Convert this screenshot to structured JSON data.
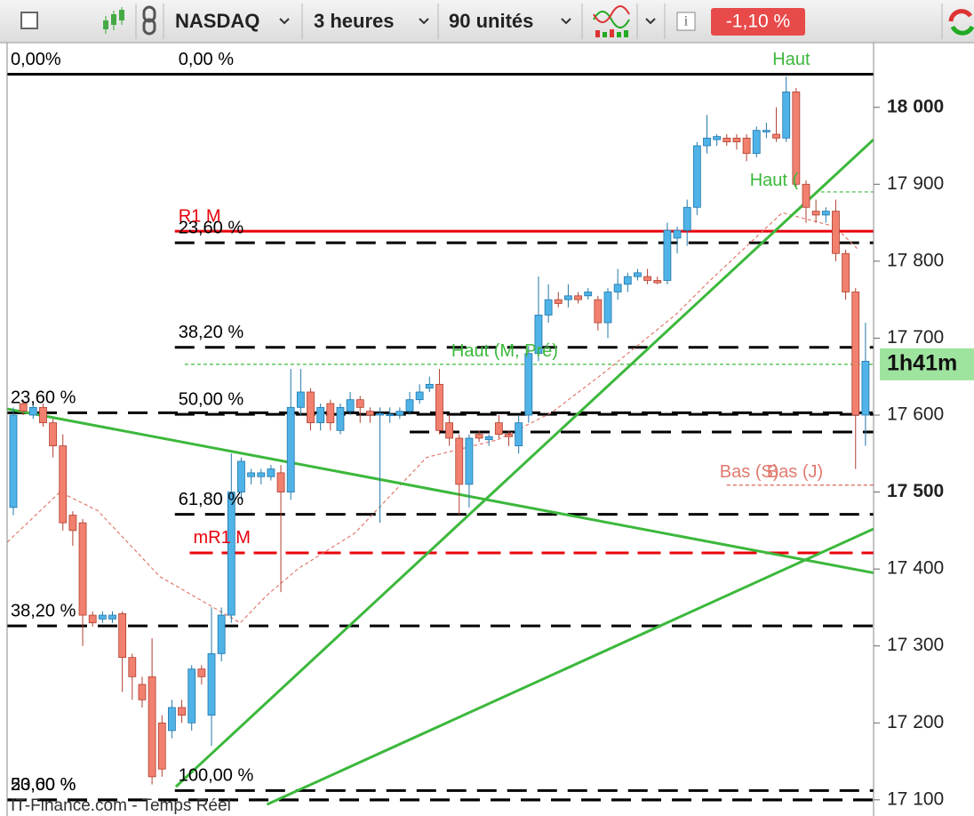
{
  "toolbar": {
    "symbol": "NASDAQ",
    "period": "3 heures",
    "units": "90 unités",
    "change": "-1,10 %"
  },
  "chart_data": {
    "type": "candlestick",
    "source": "IT-Finance.com - Temps Réel",
    "ylim": [
      17079,
      18084
    ],
    "yticks": [
      {
        "value": 17100,
        "label": "17 100"
      },
      {
        "value": 17200,
        "label": "17 200"
      },
      {
        "value": 17300,
        "label": "17 300"
      },
      {
        "value": 17400,
        "label": "17 400"
      },
      {
        "value": 17500,
        "label": "17 500"
      },
      {
        "value": 17600,
        "label": "17 600"
      },
      {
        "value": 17700,
        "label": "17 700"
      },
      {
        "value": 17800,
        "label": "17 800"
      },
      {
        "value": 17900,
        "label": "17 900"
      },
      {
        "value": 18000,
        "label": "18 000"
      }
    ],
    "up_color": "#4fb3e8",
    "down_color": "#f2806e",
    "candles": [
      [
        17480,
        17610,
        17470,
        17600
      ],
      [
        17615,
        17620,
        17600,
        17605
      ],
      [
        17600,
        17615,
        17595,
        17610
      ],
      [
        17610,
        17615,
        17585,
        17590
      ],
      [
        17590,
        17595,
        17545,
        17560
      ],
      [
        17560,
        17575,
        17450,
        17460
      ],
      [
        17470,
        17475,
        17430,
        17450
      ],
      [
        17460,
        17465,
        17300,
        17340
      ],
      [
        17340,
        17345,
        17325,
        17330
      ],
      [
        17335,
        17345,
        17330,
        17340
      ],
      [
        17335,
        17345,
        17330,
        17340
      ],
      [
        17342,
        17345,
        17240,
        17285
      ],
      [
        17285,
        17290,
        17230,
        17260
      ],
      [
        17250,
        17260,
        17220,
        17230
      ],
      [
        17260,
        17310,
        17120,
        17130
      ],
      [
        17200,
        17210,
        17130,
        17140
      ],
      [
        17190,
        17230,
        17180,
        17220
      ],
      [
        17220,
        17230,
        17200,
        17210
      ],
      [
        17200,
        17275,
        17190,
        17270
      ],
      [
        17270,
        17275,
        17250,
        17260
      ],
      [
        17210,
        17350,
        17170,
        17290
      ],
      [
        17290,
        17350,
        17280,
        17340
      ],
      [
        17340,
        17550,
        17330,
        17500
      ],
      [
        17500,
        17545,
        17490,
        17540
      ],
      [
        17520,
        17530,
        17510,
        17525
      ],
      [
        17520,
        17530,
        17510,
        17525
      ],
      [
        17520,
        17535,
        17515,
        17530
      ],
      [
        17525,
        17535,
        17370,
        17500
      ],
      [
        17500,
        17660,
        17490,
        17610
      ],
      [
        17610,
        17660,
        17600,
        17630
      ],
      [
        17630,
        17635,
        17580,
        17590
      ],
      [
        17590,
        17615,
        17580,
        17610
      ],
      [
        17615,
        17620,
        17580,
        17590
      ],
      [
        17580,
        17615,
        17575,
        17610
      ],
      [
        17605,
        17630,
        17600,
        17620
      ],
      [
        17620,
        17625,
        17590,
        17610
      ],
      [
        17605,
        17610,
        17590,
        17600
      ],
      [
        17600,
        17610,
        17460,
        17602
      ],
      [
        17600,
        17610,
        17590,
        17601
      ],
      [
        17600,
        17610,
        17595,
        17605
      ],
      [
        17605,
        17630,
        17600,
        17620
      ],
      [
        17620,
        17640,
        17615,
        17630
      ],
      [
        17635,
        17650,
        17630,
        17640
      ],
      [
        17640,
        17660,
        17575,
        17580
      ],
      [
        17590,
        17600,
        17560,
        17570
      ],
      [
        17570,
        17575,
        17470,
        17510
      ],
      [
        17510,
        17575,
        17480,
        17570
      ],
      [
        17575,
        17580,
        17565,
        17570
      ],
      [
        17568,
        17575,
        17560,
        17572
      ],
      [
        17590,
        17600,
        17570,
        17575
      ],
      [
        17575,
        17580,
        17560,
        17572
      ],
      [
        17560,
        17600,
        17550,
        17590
      ],
      [
        17600,
        17690,
        17590,
        17680
      ],
      [
        17680,
        17780,
        17670,
        17730
      ],
      [
        17730,
        17770,
        17720,
        17750
      ],
      [
        17750,
        17760,
        17740,
        17745
      ],
      [
        17750,
        17770,
        17740,
        17755
      ],
      [
        17755,
        17760,
        17745,
        17750
      ],
      [
        17755,
        17765,
        17750,
        17760
      ],
      [
        17750,
        17755,
        17710,
        17720
      ],
      [
        17720,
        17765,
        17700,
        17760
      ],
      [
        17760,
        17790,
        17750,
        17770
      ],
      [
        17770,
        17785,
        17760,
        17780
      ],
      [
        17780,
        17790,
        17775,
        17785
      ],
      [
        17780,
        17790,
        17770,
        17775
      ],
      [
        17775,
        17780,
        17770,
        17772
      ],
      [
        17775,
        17850,
        17770,
        17840
      ],
      [
        17830,
        17845,
        17810,
        17840
      ],
      [
        17840,
        17880,
        17820,
        17870
      ],
      [
        17870,
        17955,
        17860,
        17950
      ],
      [
        17950,
        17990,
        17940,
        17960
      ],
      [
        17958,
        17965,
        17950,
        17962
      ],
      [
        17960,
        17965,
        17950,
        17955
      ],
      [
        17960,
        17965,
        17945,
        17955
      ],
      [
        17960,
        17965,
        17930,
        17940
      ],
      [
        17940,
        17975,
        17935,
        17970
      ],
      [
        17968,
        17980,
        17960,
        17970
      ],
      [
        17965,
        18000,
        17955,
        17960
      ],
      [
        17960,
        18040,
        17955,
        18020
      ],
      [
        18020,
        18025,
        17895,
        17900
      ],
      [
        17900,
        17905,
        17850,
        17870
      ],
      [
        17865,
        17880,
        17850,
        17860
      ],
      [
        17860,
        17870,
        17850,
        17865
      ],
      [
        17865,
        17880,
        17800,
        17810
      ],
      [
        17810,
        17815,
        17750,
        17760
      ],
      [
        17760,
        17765,
        17530,
        17600
      ],
      [
        17600,
        17720,
        17560,
        17670
      ]
    ],
    "moving_average": {
      "color": "#e07a6e",
      "x": [
        -0.6,
        4.7,
        8.5,
        14.8,
        22.9,
        25.6,
        28.7,
        34.5,
        41.7,
        48.9,
        54.3,
        59.6,
        66.8,
        70.4,
        77.6,
        82.9,
        85.2
      ],
      "values": [
        17435,
        17500,
        17476,
        17390,
        17330,
        17366,
        17400,
        17447,
        17545,
        17568,
        17603,
        17655,
        17730,
        17776,
        17863,
        17845,
        17816
      ]
    },
    "trendlines": [
      {
        "color": "#3cb83c",
        "x": [
          16.4,
          86.8
        ],
        "values": [
          17117,
          17958
        ]
      },
      {
        "color": "#3cb83c",
        "x": [
          -0.6,
          86.8
        ],
        "values": [
          17608,
          17395
        ]
      },
      {
        "color": "#3cb83c",
        "x": [
          25.6,
          86.8
        ],
        "values": [
          17094,
          17452
        ]
      }
    ],
    "levels": [
      {
        "label": "0,00 %",
        "value": 18043,
        "from": 16.3,
        "color": "#000000",
        "style": "dashed"
      },
      {
        "label": "0,00%",
        "value": 18043,
        "from": -0.7,
        "color": "#000000",
        "style": "solid"
      },
      {
        "label": "23,60 %",
        "value": 17824,
        "from": 16.3,
        "color": "#000000",
        "style": "dashed"
      },
      {
        "label": "38,20 %",
        "value": 17688,
        "from": 16.3,
        "color": "#000000",
        "style": "dashed"
      },
      {
        "label": "50,00 %",
        "value": 17601,
        "from": 16.3,
        "color": "#000000",
        "style": "dashed"
      },
      {
        "value": 17578,
        "from": 40,
        "color": "#000000",
        "style": "dashed"
      },
      {
        "label": "61,80 %",
        "value": 17471,
        "from": 16.3,
        "color": "#000000",
        "style": "dashed"
      },
      {
        "label": "100,00 %",
        "value": 17112,
        "from": 16.3,
        "color": "#000000",
        "style": "dashed"
      },
      {
        "label": "23,60 %",
        "value": 17603,
        "from": -0.7,
        "color": "#000000",
        "style": "dashed"
      },
      {
        "label": "38,20 %",
        "value": 17326,
        "from": -0.7,
        "color": "#000000",
        "style": "dashed"
      },
      {
        "label": "50,00 %",
        "value": 17100,
        "from": -0.7,
        "color": "#000000",
        "style": "dashed"
      },
      {
        "label": "23,60 %",
        "value": 17100,
        "from": -0.7,
        "color": "#000000",
        "style": "dashed"
      },
      {
        "label": "R1 M",
        "value": 17839,
        "from": 16.3,
        "color": "#e8000b",
        "style": "solid"
      },
      {
        "label": "mR1 M",
        "value": 17421,
        "from": 17.8,
        "color": "#e8000b",
        "style": "longdash"
      },
      {
        "label": "Haut",
        "value": 18043,
        "from": 82,
        "color": "#3cb83c",
        "style": "none"
      },
      {
        "label": "Haut (",
        "value": 17890,
        "from": 81.5,
        "color": "#3cb83c",
        "style": "dotted"
      },
      {
        "label": "Haut (M, Pré)",
        "value": 17666,
        "from": 17.3,
        "color": "#3cb83c",
        "style": "dotted"
      },
      {
        "label": "Bas (S)",
        "value": 17509,
        "from": 72,
        "color": "#e07a6e",
        "style": "dotted"
      },
      {
        "label": "Bas (J)",
        "value": 17509,
        "from": 72,
        "color": "#e07a6e",
        "style": "dotted"
      }
    ],
    "countdown": {
      "label": "1h41m",
      "value": 17666,
      "color": "#9ee39e"
    }
  }
}
